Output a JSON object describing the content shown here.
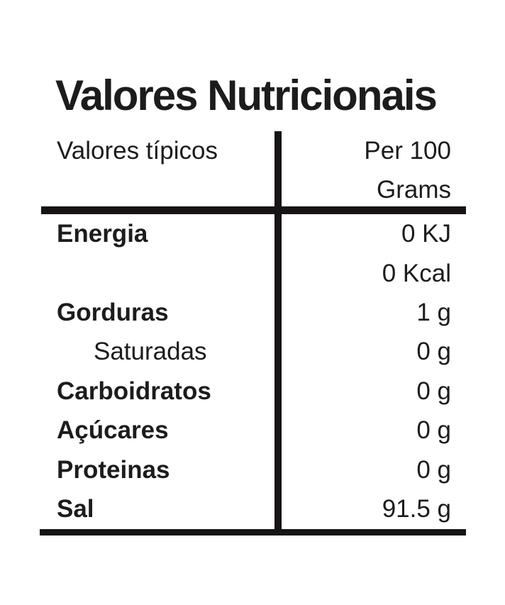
{
  "label": {
    "title": "Valores Nutricionais",
    "header": {
      "left": "Valores típicos",
      "right_line1": "Per 100",
      "right_line2": "Grams"
    },
    "rows": [
      {
        "label": "Energia",
        "value": "0 KJ",
        "style": "bold"
      },
      {
        "label": "",
        "value": "0 Kcal",
        "style": "plain"
      },
      {
        "label": "Gorduras",
        "value": "1 g",
        "style": "bold"
      },
      {
        "label": "Saturadas",
        "value": "0 g",
        "style": "indent"
      },
      {
        "label": "Carboidratos",
        "value": "0 g",
        "style": "bold"
      },
      {
        "label": "Açúcares",
        "value": "0 g",
        "style": "bold"
      },
      {
        "label": "Proteinas",
        "value": "0 g",
        "style": "bold"
      },
      {
        "label": "Sal",
        "value": "91.5 g",
        "style": "bold"
      }
    ],
    "colors": {
      "text": "#1d1c1c",
      "rule": "#161414",
      "background": "#ffffff"
    }
  }
}
